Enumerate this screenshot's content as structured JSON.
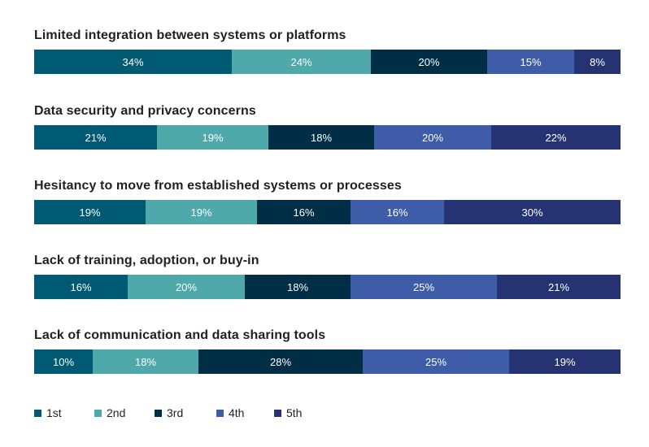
{
  "chart_data": {
    "type": "bar",
    "orientation": "horizontal",
    "stacked": true,
    "normalized": true,
    "title": "",
    "xlabel": "",
    "ylabel": "",
    "categories": [
      "Limited integration between systems or platforms",
      "Data security and privacy concerns",
      "Hesitancy to move from established systems or processes",
      "Lack of training, adoption, or buy-in",
      "Lack of communication and data sharing tools"
    ],
    "series": [
      {
        "name": "1st",
        "color": "#005a73",
        "values": [
          34,
          21,
          19,
          16,
          10
        ]
      },
      {
        "name": "2nd",
        "color": "#4fa9aa",
        "values": [
          24,
          19,
          19,
          20,
          18
        ]
      },
      {
        "name": "3rd",
        "color": "#012e47",
        "values": [
          20,
          18,
          16,
          18,
          28
        ]
      },
      {
        "name": "4th",
        "color": "#3f5ca8",
        "values": [
          15,
          20,
          16,
          25,
          25
        ]
      },
      {
        "name": "5th",
        "color": "#263373",
        "values": [
          8,
          22,
          30,
          21,
          19
        ]
      }
    ],
    "value_suffix": "%",
    "legend_position": "bottom-left",
    "grid": false
  }
}
